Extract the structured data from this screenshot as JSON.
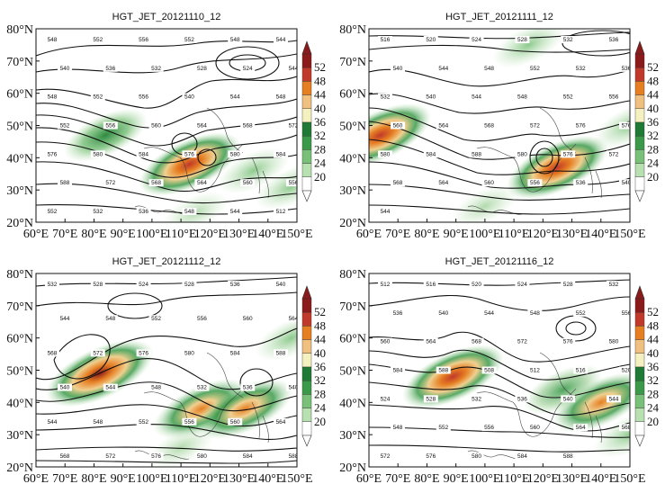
{
  "panels": [
    {
      "title": "HGT_JET_20121110_12",
      "contour_labels": [
        "548",
        "552",
        "556",
        "552",
        "548",
        "544",
        "540",
        "536",
        "532",
        "528",
        "524",
        "544",
        "548",
        "552",
        "556",
        "540",
        "544",
        "548",
        "552",
        "556",
        "560",
        "564",
        "568",
        "572",
        "576",
        "580",
        "584",
        "576",
        "580",
        "584",
        "588",
        "572",
        "568",
        "564",
        "560",
        "556",
        "552",
        "532",
        "536",
        "548",
        "544",
        "512"
      ],
      "jets": [
        {
          "lon": 84,
          "lat": 47,
          "strength": 36
        },
        {
          "lon": 113,
          "lat": 38,
          "strength": 48
        },
        {
          "lon": 135,
          "lat": 36,
          "strength": 28
        },
        {
          "lon": 148,
          "lat": 31,
          "strength": 28
        },
        {
          "lon": 115,
          "lat": 23,
          "strength": 24
        }
      ]
    },
    {
      "title": "HGT_JET_20121111_12",
      "contour_labels": [
        "516",
        "520",
        "524",
        "528",
        "532",
        "536",
        "540",
        "544",
        "548",
        "552",
        "532",
        "536",
        "532",
        "540",
        "544",
        "548",
        "552",
        "556",
        "560",
        "564",
        "568",
        "572",
        "576",
        "576",
        "580",
        "584",
        "588",
        "580",
        "576",
        "572",
        "568",
        "564",
        "560",
        "556",
        "536",
        "540",
        "544"
      ],
      "jets": [
        {
          "lon": 64,
          "lat": 47,
          "strength": 48
        },
        {
          "lon": 125,
          "lat": 37,
          "strength": 48
        },
        {
          "lon": 115,
          "lat": 75,
          "strength": 28
        },
        {
          "lon": 150,
          "lat": 50,
          "strength": 28
        },
        {
          "lon": 100,
          "lat": 25,
          "strength": 24
        }
      ]
    },
    {
      "title": "HGT_JET_20121112_12",
      "contour_labels": [
        "532",
        "528",
        "524",
        "528",
        "536",
        "540",
        "544",
        "548",
        "552",
        "556",
        "560",
        "564",
        "568",
        "572",
        "576",
        "580",
        "584",
        "588",
        "540",
        "544",
        "548",
        "532",
        "536",
        "540",
        "544",
        "548",
        "552",
        "556",
        "560",
        "564",
        "568",
        "572",
        "576",
        "580",
        "584",
        "588"
      ],
      "jets": [
        {
          "lon": 82,
          "lat": 49,
          "strength": 52
        },
        {
          "lon": 117,
          "lat": 38,
          "strength": 44
        },
        {
          "lon": 132,
          "lat": 38,
          "strength": 44
        },
        {
          "lon": 110,
          "lat": 26,
          "strength": 24
        },
        {
          "lon": 148,
          "lat": 60,
          "strength": 28
        }
      ]
    },
    {
      "title": "HGT_JET_20121116_12",
      "contour_labels": [
        "512",
        "516",
        "520",
        "524",
        "528",
        "532",
        "536",
        "540",
        "544",
        "548",
        "552",
        "556",
        "560",
        "564",
        "568",
        "572",
        "576",
        "580",
        "584",
        "588",
        "508",
        "512",
        "516",
        "520",
        "524",
        "528",
        "532",
        "536",
        "540",
        "544",
        "548",
        "552",
        "556",
        "560",
        "564",
        "568",
        "572",
        "576",
        "580",
        "584",
        "588"
      ],
      "jets": [
        {
          "lon": 89,
          "lat": 48,
          "strength": 48
        },
        {
          "lon": 140,
          "lat": 40,
          "strength": 44
        },
        {
          "lon": 127,
          "lat": 44,
          "strength": 32
        },
        {
          "lon": 150,
          "lat": 30,
          "strength": 28
        }
      ]
    }
  ],
  "axes": {
    "lat_labels": [
      "80°N",
      "70°N",
      "60°N",
      "50°N",
      "40°N",
      "30°N",
      "20°N"
    ],
    "lon_labels": [
      "60°E",
      "70°E",
      "80°E",
      "90°E",
      "100°E",
      "110°E",
      "120°E",
      "130°E",
      "140°E",
      "150°E"
    ],
    "lon_range": [
      60,
      150
    ],
    "lat_range": [
      20,
      80
    ]
  },
  "colorbar": {
    "labels": [
      "52",
      "48",
      "44",
      "40",
      "36",
      "32",
      "28",
      "24",
      "20"
    ],
    "colors": [
      "#8b1a1a",
      "#c0392b",
      "#e67e22",
      "#f0c080",
      "#f5f0c0",
      "#1e7a34",
      "#3a9a4a",
      "#79c079",
      "#b8e0b0",
      "#ffffff"
    ]
  }
}
